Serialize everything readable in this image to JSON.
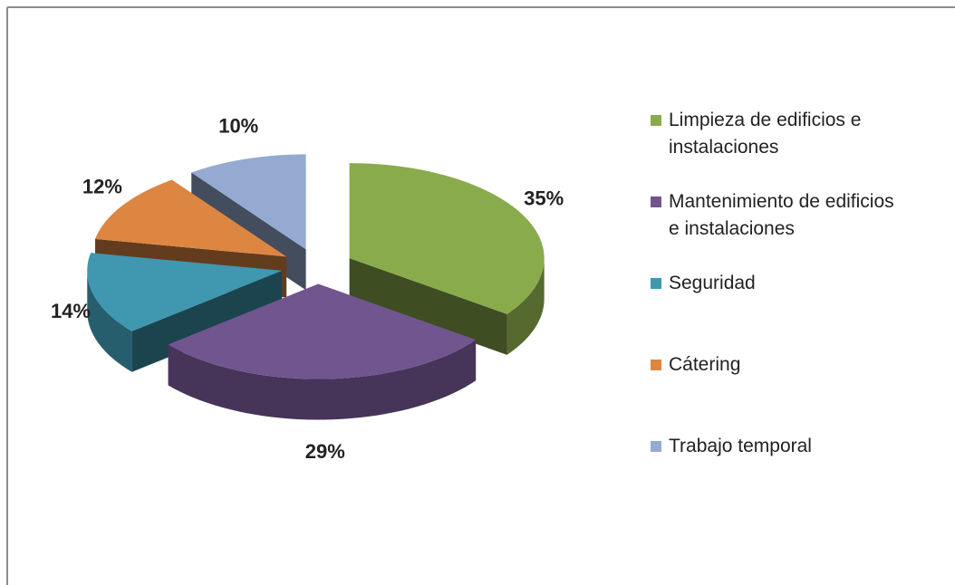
{
  "chart_data": {
    "type": "pie",
    "categories": [
      "Limpieza de edificios e instalaciones",
      "Mantenimiento de edificios e instalaciones",
      "Seguridad",
      "Cátering",
      "Trabajo temporal"
    ],
    "values": [
      35,
      29,
      14,
      12,
      10
    ],
    "value_labels": [
      "35%",
      "29%",
      "14%",
      "12%",
      "10%"
    ],
    "colors": [
      "#8aab4c",
      "#71558f",
      "#3f97b0",
      "#dc8642",
      "#94aad0"
    ],
    "legend": "right"
  }
}
